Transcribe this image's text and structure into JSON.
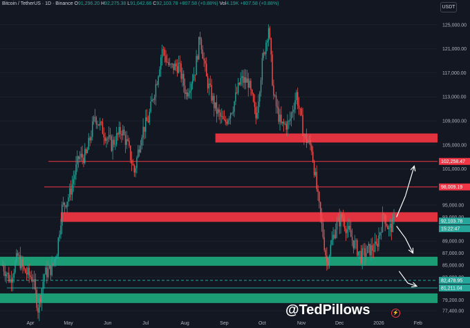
{
  "header": {
    "symbol": "Bitcoin / TetherUS · 1D · Binance",
    "o_label": "O",
    "o_value": "91,296.20",
    "h_label": "H",
    "h_value": "92,275.38",
    "l_label": "L",
    "l_value": "91,042.66",
    "c_label": "C",
    "c_value": "92,103.78",
    "change": "+807.58 (+0.88%)",
    "vol_label": "Vol",
    "vol_value": "4.19K",
    "vol_change": "+807.58 (+0.88%)"
  },
  "unit_button": "USDT",
  "watermark": "@TedPillows",
  "colors": {
    "background": "#131722",
    "up": "#26a69a",
    "down": "#ef5350",
    "zone_red": "#e0333f",
    "zone_green": "#1b9c74",
    "line_red": "#f23645",
    "line_green": "#26a69a",
    "axis_text": "#b2b5be",
    "grid": "#1e222d"
  },
  "chart_data": {
    "type": "candlestick",
    "title": "Bitcoin / TetherUS · 1D · Binance",
    "xlabel": "",
    "ylabel": "",
    "ylim": [
      76500,
      127500
    ],
    "x_ticks": [
      "Apr",
      "May",
      "Jun",
      "Jul",
      "Aug",
      "Sep",
      "Oct",
      "Nov",
      "Dec",
      "2026",
      "Feb"
    ],
    "y_ticks": [
      "125,000.00",
      "121,000.00",
      "117,000.00",
      "113,000.00",
      "109,000.00",
      "105,000.00",
      "101,000.00",
      "95,000.00",
      "93,000.00",
      "89,000.00",
      "87,000.00",
      "85,000.00",
      "83,000.00",
      "79,200.00",
      "77,400.00"
    ],
    "y_tick_values": [
      125000,
      121000,
      117000,
      113000,
      109000,
      105000,
      101000,
      95000,
      93000,
      89000,
      87000,
      85000,
      83000,
      79200,
      77400
    ],
    "price_tags": [
      {
        "label": "102,258.47",
        "value": 102258.47,
        "kind": "red"
      },
      {
        "label": "98,009.19",
        "value": 98009.19,
        "kind": "red"
      },
      {
        "label": "92,103.78",
        "value": 92103.78,
        "kind": "last"
      },
      {
        "label": "15:22:47",
        "value": 92103.78,
        "kind": "countdown"
      },
      {
        "label": "82,478.95",
        "value": 82478.95,
        "kind": "green"
      },
      {
        "label": "81,211.04",
        "value": 81211.04,
        "kind": "green"
      }
    ],
    "zones": [
      {
        "low": 105400,
        "high": 106900,
        "color": "red",
        "from": "Aug",
        "to": "end"
      },
      {
        "low": 92200,
        "high": 93800,
        "color": "red",
        "from": "Apr",
        "to": "end"
      },
      {
        "low": 84900,
        "high": 86400,
        "color": "green",
        "from": "start",
        "to": "end"
      },
      {
        "low": 78700,
        "high": 80300,
        "color": "green",
        "from": "start",
        "to": "end"
      }
    ],
    "lines": [
      {
        "value": 102258.47,
        "style": "solid",
        "color": "red"
      },
      {
        "value": 98009.19,
        "style": "solid",
        "color": "red"
      },
      {
        "value": 82478.95,
        "style": "dashed",
        "color": "green"
      },
      {
        "value": 81211.04,
        "style": "solid",
        "color": "green"
      }
    ],
    "path_points": [
      [
        "Mar 10",
        85000
      ],
      [
        "Mar 16",
        82500
      ],
      [
        "Mar 22",
        86500
      ],
      [
        "Mar 27",
        84000
      ],
      [
        "Apr 3",
        82800
      ],
      [
        "Apr 7",
        77800
      ],
      [
        "Apr 12",
        83500
      ],
      [
        "Apr 18",
        84500
      ],
      [
        "Apr 22",
        87500
      ],
      [
        "Apr 26",
        94500
      ],
      [
        "May 2",
        96800
      ],
      [
        "May 9",
        102800
      ],
      [
        "May 15",
        103200
      ],
      [
        "May 22",
        109800
      ],
      [
        "May 28",
        107500
      ],
      [
        "Jun 4",
        105000
      ],
      [
        "Jun 12",
        107500
      ],
      [
        "Jun 17",
        104800
      ],
      [
        "Jun 22",
        100500
      ],
      [
        "Jun 28",
        107200
      ],
      [
        "Jul 3",
        109200
      ],
      [
        "Jul 10",
        116000
      ],
      [
        "Jul 14",
        121000
      ],
      [
        "Jul 20",
        117800
      ],
      [
        "Jul 27",
        118200
      ],
      [
        "Aug 2",
        113500
      ],
      [
        "Aug 9",
        117500
      ],
      [
        "Aug 13",
        123200
      ],
      [
        "Aug 18",
        116000
      ],
      [
        "Aug 25",
        111000
      ],
      [
        "Sep 1",
        108500
      ],
      [
        "Sep 8",
        111500
      ],
      [
        "Sep 14",
        115800
      ],
      [
        "Sep 20",
        115500
      ],
      [
        "Sep 26",
        109500
      ],
      [
        "Oct 1",
        118500
      ],
      [
        "Oct 6",
        124800
      ],
      [
        "Oct 10",
        113000
      ],
      [
        "Oct 16",
        108200
      ],
      [
        "Oct 22",
        108500
      ],
      [
        "Oct 28",
        113500
      ],
      [
        "Nov 3",
        106500
      ],
      [
        "Nov 9",
        104500
      ],
      [
        "Nov 14",
        96000
      ],
      [
        "Nov 21",
        85500
      ],
      [
        "Nov 24",
        88000
      ],
      [
        "Nov 28",
        91500
      ],
      [
        "Dec 3",
        93000
      ],
      [
        "Dec 8",
        90500
      ],
      [
        "Dec 14",
        88000
      ],
      [
        "Dec 18",
        86500
      ],
      [
        "Dec 24",
        87500
      ],
      [
        "Dec 30",
        88000
      ],
      [
        "Jan 5",
        93500
      ],
      [
        "Jan 9",
        90800
      ],
      [
        "Jan 13",
        92100
      ]
    ],
    "projection_arrows": [
      {
        "from": [
          "Jan 15",
          93000
        ],
        "to": [
          "Jan 22",
          96500
        ]
      },
      {
        "from": [
          "Jan 22",
          96500
        ],
        "to": [
          "Jan 29",
          101500
        ]
      },
      {
        "from": [
          "Jan 15",
          91500
        ],
        "to": [
          "Jan 22",
          89500
        ]
      },
      {
        "from": [
          "Jan 22",
          89500
        ],
        "to": [
          "Jan 28",
          87000
        ]
      },
      {
        "from": [
          "Jan 17",
          84000
        ],
        "to": [
          "Jan 24",
          82000
        ]
      },
      {
        "from": [
          "Jan 24",
          82000
        ],
        "to": [
          "Jan 31",
          81500
        ]
      }
    ]
  }
}
